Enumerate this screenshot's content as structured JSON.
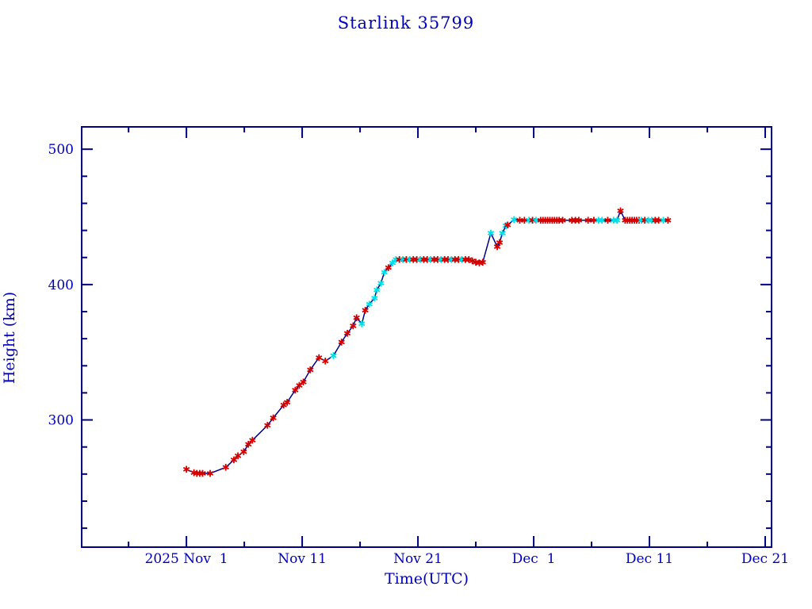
{
  "chart": {
    "title": "Starlink 35799",
    "xlabel": "Time(UTC)",
    "ylabel": "Height (km)"
  },
  "colors": {
    "axis": "#000080",
    "line": "#000080",
    "text": "#0000BB",
    "marker_red": "#D40000",
    "marker_cyan": "#00E0E8",
    "background": "#FFFFFF"
  },
  "chart_data": {
    "type": "line",
    "title": "Starlink 35799",
    "xlabel": "Time(UTC)",
    "ylabel": "Height (km)",
    "x_unit": "days since 2025 Nov 1 00:00 UTC",
    "xlim_days": [
      -9.05,
      50.55
    ],
    "ylim": [
      206,
      516.5
    ],
    "grid": false,
    "legend": null,
    "marker_style": "asterisk",
    "x_major_ticks": [
      {
        "day": 0,
        "label": "2025 Nov  1"
      },
      {
        "day": 10,
        "label": "Nov 11"
      },
      {
        "day": 20,
        "label": "Nov 21"
      },
      {
        "day": 30,
        "label": "Dec  1"
      },
      {
        "day": 40,
        "label": "Dec 11"
      },
      {
        "day": 50,
        "label": "Dec 21"
      }
    ],
    "x_minor_tick_days": [
      -5,
      5,
      15,
      25,
      35,
      45
    ],
    "y_major_ticks": [
      {
        "km": 300,
        "label": "300"
      },
      {
        "km": 400,
        "label": "400"
      },
      {
        "km": 500,
        "label": "500"
      }
    ],
    "y_minor_tick_km": [
      220,
      240,
      260,
      280,
      320,
      340,
      360,
      380,
      420,
      440,
      460,
      480
    ],
    "marker_colors": {
      "r": "#D40000",
      "c": "#00E0E8"
    },
    "series": [
      {
        "name": "Height (km)",
        "line_color": "#000080",
        "points": [
          [
            0.0,
            263.5,
            "r"
          ],
          [
            0.65,
            261.0,
            "r"
          ],
          [
            0.9,
            260.5,
            "r"
          ],
          [
            1.15,
            260.5,
            "r"
          ],
          [
            1.4,
            260.5,
            "r"
          ],
          [
            2.05,
            260.5,
            "r"
          ],
          [
            3.4,
            265.0,
            "r"
          ],
          [
            4.1,
            270.5,
            "r"
          ],
          [
            4.45,
            273.5,
            "r"
          ],
          [
            4.95,
            276.5,
            "r"
          ],
          [
            5.35,
            282.0,
            "r"
          ],
          [
            5.7,
            285.0,
            "r"
          ],
          [
            7.0,
            296.0,
            "r"
          ],
          [
            7.5,
            301.5,
            "r"
          ],
          [
            8.4,
            311.0,
            "r"
          ],
          [
            8.7,
            313.0,
            "r"
          ],
          [
            9.4,
            322.0,
            "r"
          ],
          [
            9.75,
            325.5,
            "r"
          ],
          [
            10.1,
            328.0,
            "r"
          ],
          [
            10.7,
            337.0,
            "r"
          ],
          [
            11.45,
            346.0,
            "r"
          ],
          [
            12.0,
            343.5,
            "r"
          ],
          [
            12.7,
            347.5,
            "c"
          ],
          [
            13.4,
            357.5,
            "r"
          ],
          [
            13.9,
            364.0,
            "r"
          ],
          [
            14.4,
            369.5,
            "r"
          ],
          [
            14.7,
            375.5,
            "r"
          ],
          [
            15.15,
            371.0,
            "c"
          ],
          [
            15.45,
            381.0,
            "r"
          ],
          [
            15.8,
            385.5,
            "c"
          ],
          [
            16.25,
            390.0,
            "c"
          ],
          [
            16.45,
            396.0,
            "c"
          ],
          [
            16.8,
            401.0,
            "c"
          ],
          [
            17.1,
            409.0,
            "c"
          ],
          [
            17.45,
            412.5,
            "r"
          ],
          [
            17.8,
            416.0,
            "c"
          ],
          [
            18.1,
            418.5,
            "c"
          ],
          [
            18.4,
            418.5,
            "r"
          ],
          [
            18.7,
            418.5,
            "c"
          ],
          [
            19.0,
            418.5,
            "r"
          ],
          [
            19.3,
            418.5,
            "c"
          ],
          [
            19.6,
            418.5,
            "r"
          ],
          [
            19.9,
            418.5,
            "r"
          ],
          [
            20.2,
            418.5,
            "c"
          ],
          [
            20.5,
            418.5,
            "r"
          ],
          [
            20.8,
            418.5,
            "r"
          ],
          [
            21.1,
            418.5,
            "c"
          ],
          [
            21.4,
            418.5,
            "r"
          ],
          [
            21.7,
            418.5,
            "r"
          ],
          [
            22.0,
            418.5,
            "c"
          ],
          [
            22.3,
            418.5,
            "r"
          ],
          [
            22.6,
            418.5,
            "r"
          ],
          [
            22.9,
            418.5,
            "c"
          ],
          [
            23.2,
            418.5,
            "r"
          ],
          [
            23.5,
            418.5,
            "r"
          ],
          [
            23.8,
            418.5,
            "c"
          ],
          [
            24.1,
            418.5,
            "r"
          ],
          [
            24.4,
            418.5,
            "r"
          ],
          [
            24.7,
            417.5,
            "r"
          ],
          [
            25.0,
            416.5,
            "r"
          ],
          [
            25.3,
            416.0,
            "r"
          ],
          [
            25.6,
            416.5,
            "r"
          ],
          [
            26.3,
            438.0,
            "c"
          ],
          [
            26.85,
            428.0,
            "r"
          ],
          [
            27.05,
            431.0,
            "r"
          ],
          [
            27.3,
            438.0,
            "c"
          ],
          [
            27.6,
            443.5,
            "c"
          ],
          [
            27.75,
            444.0,
            "r"
          ],
          [
            28.3,
            448.0,
            "c"
          ],
          [
            28.8,
            447.5,
            "r"
          ],
          [
            29.2,
            447.5,
            "r"
          ],
          [
            29.6,
            447.5,
            "c"
          ],
          [
            29.9,
            447.5,
            "r"
          ],
          [
            30.2,
            447.5,
            "c"
          ],
          [
            30.6,
            447.5,
            "r"
          ],
          [
            30.8,
            447.5,
            "r"
          ],
          [
            31.0,
            447.5,
            "r"
          ],
          [
            31.2,
            447.5,
            "r"
          ],
          [
            31.4,
            447.5,
            "r"
          ],
          [
            31.6,
            447.5,
            "r"
          ],
          [
            31.8,
            447.5,
            "r"
          ],
          [
            32.0,
            447.5,
            "r"
          ],
          [
            32.2,
            447.5,
            "r"
          ],
          [
            32.5,
            447.5,
            "r"
          ],
          [
            33.3,
            447.5,
            "r"
          ],
          [
            33.6,
            447.5,
            "r"
          ],
          [
            33.9,
            447.5,
            "r"
          ],
          [
            34.7,
            447.5,
            "r"
          ],
          [
            35.2,
            447.5,
            "r"
          ],
          [
            35.6,
            447.5,
            "c"
          ],
          [
            35.9,
            447.5,
            "c"
          ],
          [
            36.4,
            447.5,
            "r"
          ],
          [
            36.9,
            447.5,
            "c"
          ],
          [
            37.2,
            447.5,
            "c"
          ],
          [
            37.5,
            454.5,
            "r"
          ],
          [
            37.9,
            447.5,
            "r"
          ],
          [
            38.1,
            447.5,
            "r"
          ],
          [
            38.3,
            447.5,
            "r"
          ],
          [
            38.5,
            447.5,
            "r"
          ],
          [
            38.7,
            447.5,
            "r"
          ],
          [
            38.9,
            447.5,
            "r"
          ],
          [
            39.1,
            447.5,
            "r"
          ],
          [
            39.3,
            447.5,
            "c"
          ],
          [
            39.6,
            447.5,
            "r"
          ],
          [
            39.9,
            447.5,
            "c"
          ],
          [
            40.2,
            447.5,
            "c"
          ],
          [
            40.5,
            447.5,
            "r"
          ],
          [
            40.8,
            447.5,
            "r"
          ],
          [
            41.2,
            447.5,
            "c"
          ],
          [
            41.6,
            447.5,
            "r"
          ]
        ]
      }
    ]
  }
}
